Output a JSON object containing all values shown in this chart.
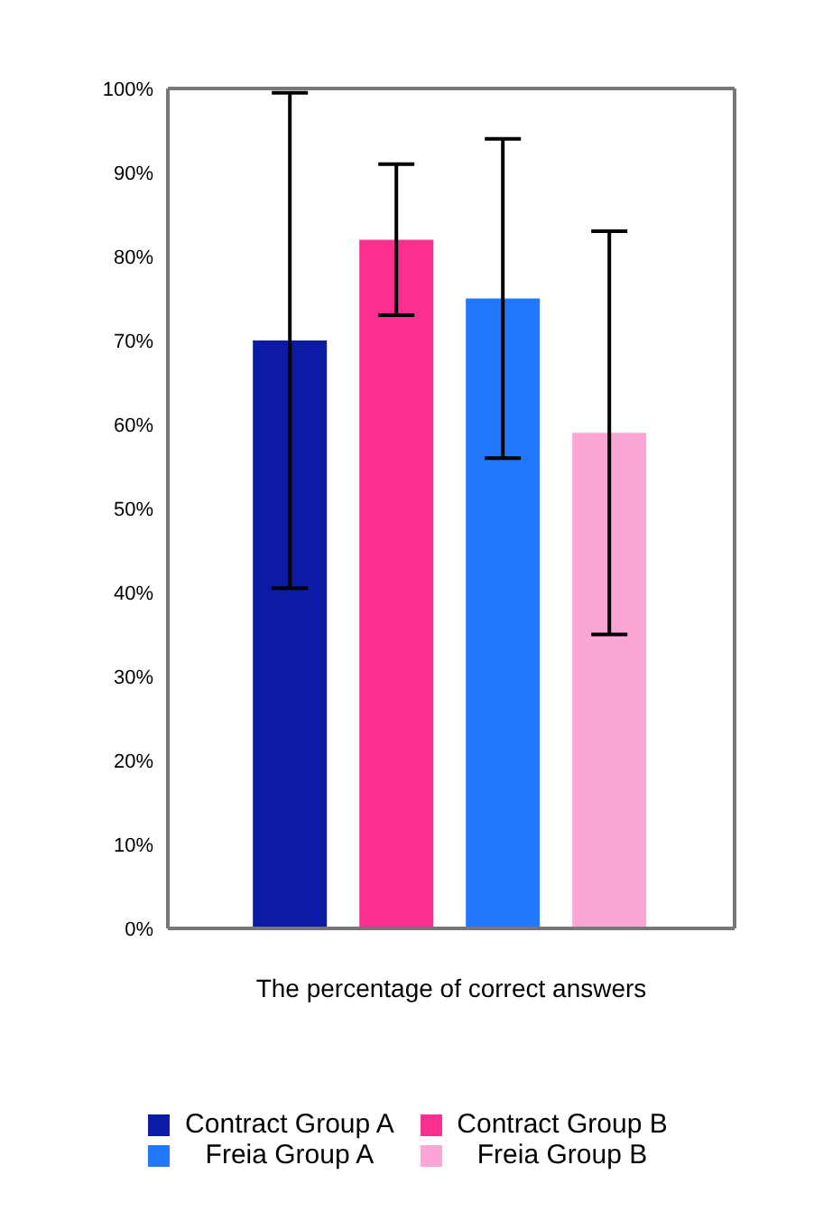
{
  "chart_data": {
    "type": "bar",
    "xlabel": "The percentage of correct answers",
    "categories": [
      null
    ],
    "series": [
      {
        "name": "Contract Group A",
        "color": "#0c1ba3",
        "values": [
          70
        ],
        "errors": [
          [
            40.5,
            99.5
          ]
        ]
      },
      {
        "name": "Contract Group B",
        "color": "#fc2e8f",
        "values": [
          82
        ],
        "errors": [
          [
            73,
            91
          ]
        ]
      },
      {
        "name": "Freia Group A",
        "color": "#2178fc",
        "values": [
          75
        ],
        "errors": [
          [
            56,
            94
          ]
        ]
      },
      {
        "name": "Freia Group B",
        "color": "#fca6d6",
        "values": [
          59
        ],
        "errors": [
          [
            35,
            83
          ]
        ]
      }
    ],
    "ylim": [
      0,
      100
    ],
    "yticks": [
      {
        "value": 0,
        "label": "0%"
      },
      {
        "value": 10,
        "label": "10%"
      },
      {
        "value": 20,
        "label": "20%"
      },
      {
        "value": 30,
        "label": "30%"
      },
      {
        "value": 40,
        "label": "40%"
      },
      {
        "value": 50,
        "label": "50%"
      },
      {
        "value": 60,
        "label": "60%"
      },
      {
        "value": 70,
        "label": "70%"
      },
      {
        "value": 80,
        "label": "80%"
      },
      {
        "value": 90,
        "label": "90%"
      },
      {
        "value": 100,
        "label": "100%"
      }
    ],
    "legend": "bottom",
    "grid": false
  }
}
